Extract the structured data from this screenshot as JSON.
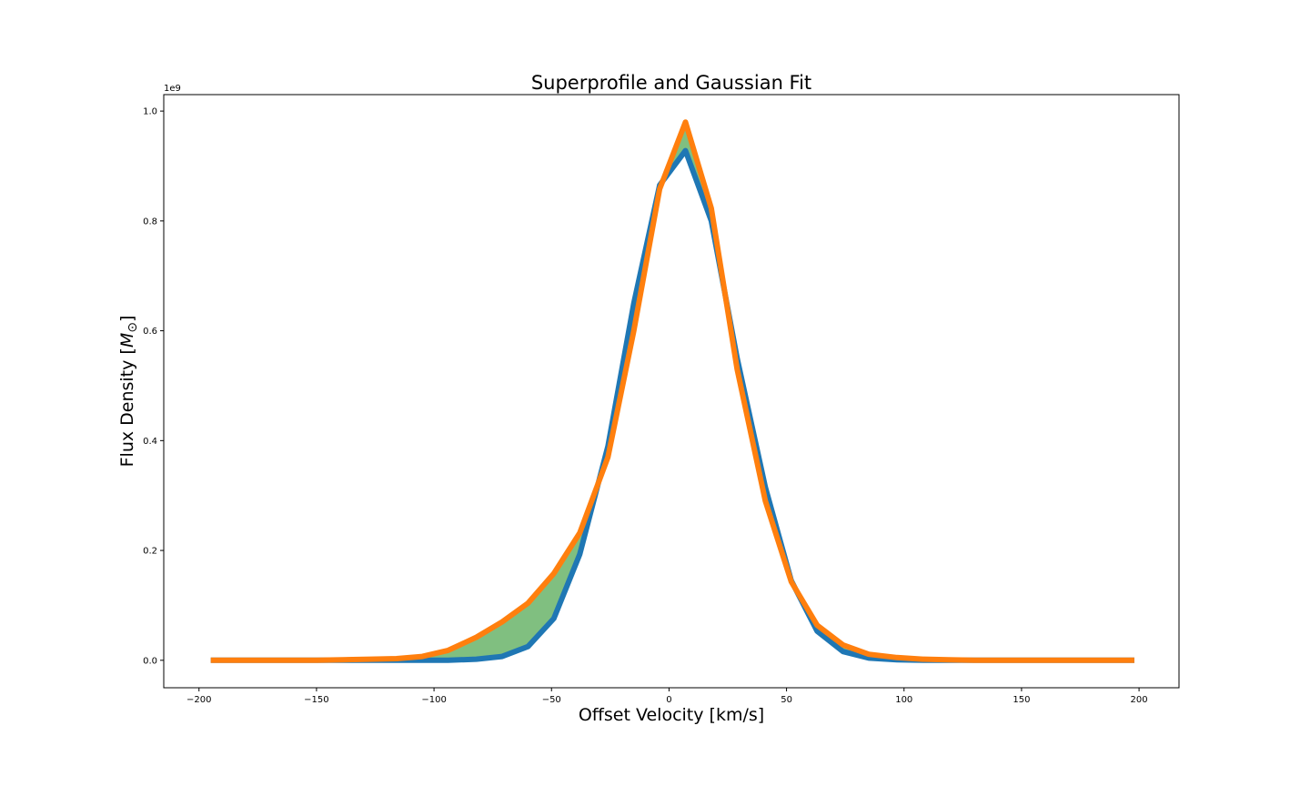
{
  "chart_data": {
    "type": "line",
    "title": "Superprofile and Gaussian Fit",
    "xlabel": "Offset Velocity [km/s]",
    "ylabel_text": "Flux Density [",
    "ylabel_symbol": "M",
    "ylabel_subscript": "⊙",
    "ylabel_close": "]",
    "y_offset_text": "1e9",
    "y_multiplier": 1000000000,
    "xlim": [
      -215,
      217
    ],
    "ylim": [
      -0.05,
      1.03
    ],
    "xticks": [
      -200,
      -150,
      -100,
      -50,
      0,
      50,
      100,
      150,
      200
    ],
    "xtick_labels": [
      "−200",
      "−150",
      "−100",
      "−50",
      "0",
      "50",
      "100",
      "150",
      "200"
    ],
    "yticks": [
      0.0,
      0.2,
      0.4,
      0.6,
      0.8,
      1.0
    ],
    "ytick_labels": [
      "0.0",
      "0.2",
      "0.4",
      "0.6",
      "0.8",
      "1.0"
    ],
    "grid": false,
    "x": [
      -195,
      -184,
      -172,
      -161,
      -150,
      -139,
      -127,
      -116,
      -105,
      -94,
      -82,
      -71,
      -60,
      -49,
      -38,
      -26,
      -15,
      -4,
      7,
      18,
      29,
      41,
      52,
      63,
      74,
      85,
      97,
      108,
      119,
      130,
      142,
      153,
      164,
      175,
      187,
      198
    ],
    "series": [
      {
        "color": "#1f77b4",
        "values": [
          0,
          0,
          0,
          0,
          0,
          0,
          0,
          0,
          0,
          0,
          0.002,
          0.007,
          0.025,
          0.076,
          0.193,
          0.39,
          0.65,
          0.865,
          0.928,
          0.8,
          0.55,
          0.315,
          0.145,
          0.053,
          0.016,
          0.004,
          0.001,
          0,
          0,
          0,
          0,
          0,
          0,
          0,
          0,
          0
        ]
      },
      {
        "color": "#ff7f0e",
        "values": [
          0,
          0,
          0,
          0,
          0,
          0.001,
          0.002,
          0.003,
          0.007,
          0.018,
          0.042,
          0.07,
          0.104,
          0.158,
          0.232,
          0.37,
          0.6,
          0.858,
          0.98,
          0.823,
          0.53,
          0.29,
          0.143,
          0.064,
          0.028,
          0.011,
          0.005,
          0.002,
          0.001,
          0,
          0,
          0,
          0,
          0,
          0,
          0
        ]
      }
    ],
    "fill_between": {
      "color": "#80bf80",
      "between": [
        0,
        1
      ]
    }
  }
}
